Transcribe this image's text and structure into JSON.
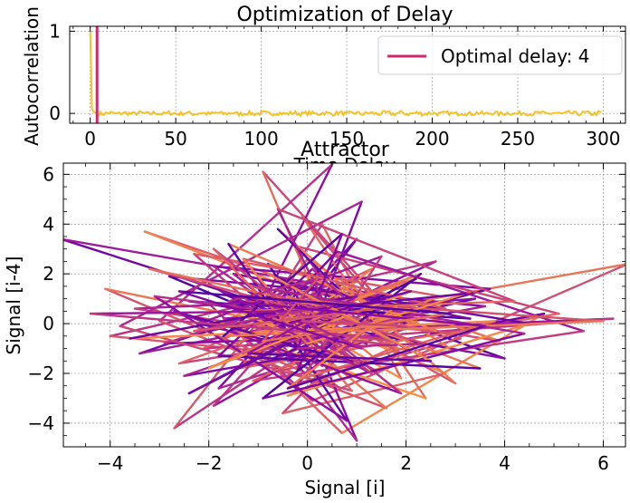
{
  "chart_data": [
    {
      "type": "line",
      "title": "Optimization of Delay",
      "xlabel": "Time Delay",
      "ylabel": "Autocorrelation",
      "xlim": [
        -12,
        313
      ],
      "ylim": [
        -0.12,
        1.06
      ],
      "xticks": [
        0,
        50,
        100,
        150,
        200,
        250,
        300
      ],
      "yticks": [
        0,
        1
      ],
      "grid": true,
      "legend": {
        "position": "top-right",
        "entries": [
          "Optimal delay: 4"
        ]
      },
      "series": [
        {
          "kind": "autocorrelation",
          "color": "#f6c123",
          "x_start": 0,
          "x_end": 299,
          "values_at_lag_0_to_4": [
            1.0,
            0.05,
            0.02,
            0.01,
            0.0
          ],
          "noise_level": 0.025
        }
      ],
      "vline": {
        "x": 4,
        "color": "#cc2a6a",
        "label": "Optimal delay: 4"
      }
    },
    {
      "type": "line",
      "title": "Attractor",
      "xlabel": "Signal [i]",
      "ylabel": "Signal [i-4]",
      "xlim": [
        -4.95,
        6.45
      ],
      "ylim": [
        -4.95,
        6.45
      ],
      "xticks": [
        -4,
        -2,
        0,
        2,
        4,
        6
      ],
      "yticks": [
        -4,
        -2,
        0,
        2,
        4,
        6
      ],
      "grid": true,
      "colormap": "plasma",
      "points": [
        [
          -0.5,
          0.3
        ],
        [
          1.2,
          -0.8
        ],
        [
          -1.6,
          1.1
        ],
        [
          2.3,
          0.2
        ],
        [
          -0.9,
          -1.7
        ],
        [
          0.4,
          2.1
        ],
        [
          -2.2,
          -0.4
        ],
        [
          1.8,
          1.5
        ],
        [
          -0.2,
          -2.4
        ],
        [
          3.1,
          -0.6
        ],
        [
          -3.3,
          3.7
        ],
        [
          0.9,
          0.5
        ],
        [
          -1.1,
          -0.9
        ],
        [
          2.6,
          2.5
        ],
        [
          -4.0,
          -0.5
        ],
        [
          1.5,
          -1.6
        ],
        [
          -0.7,
          1.9
        ],
        [
          4.0,
          -1.4
        ],
        [
          -2.0,
          0.8
        ],
        [
          0.1,
          -3.1
        ],
        [
          6.5,
          2.4
        ],
        [
          -0.3,
          0.0
        ],
        [
          1.0,
          3.4
        ],
        [
          -1.8,
          -2.6
        ],
        [
          2.0,
          -0.2
        ],
        [
          -0.9,
          6.1
        ],
        [
          0.6,
          -0.9
        ],
        [
          -2.8,
          1.9
        ],
        [
          3.6,
          0.7
        ],
        [
          -1.3,
          -1.1
        ],
        [
          0.3,
          4.0
        ],
        [
          1.9,
          -2.2
        ],
        [
          -0.6,
          0.6
        ],
        [
          -5.0,
          3.4
        ],
        [
          2.2,
          0.9
        ],
        [
          -1.5,
          -0.2
        ],
        [
          0.7,
          -4.4
        ],
        [
          4.8,
          0.4
        ],
        [
          -0.4,
          -1.5
        ],
        [
          1.4,
          1.2
        ],
        [
          -2.7,
          -4.2
        ],
        [
          0.0,
          2.6
        ],
        [
          2.9,
          -1.0
        ],
        [
          -1.0,
          0.4
        ],
        [
          0.5,
          6.4
        ],
        [
          -3.0,
          0.1
        ],
        [
          1.6,
          -3.4
        ],
        [
          -0.1,
          -0.6
        ],
        [
          3.7,
          1.4
        ],
        [
          -1.9,
          2.3
        ],
        [
          0.8,
          -1.3
        ],
        [
          -0.8,
          -2.0
        ],
        [
          2.5,
          0.3
        ],
        [
          -2.4,
          0.9
        ],
        [
          1.1,
          -0.1
        ],
        [
          -0.2,
          3.1
        ],
        [
          5.1,
          0.4
        ],
        [
          -1.4,
          -1.8
        ],
        [
          0.9,
          1.7
        ],
        [
          -3.4,
          -1.2
        ],
        [
          1.7,
          0.8
        ],
        [
          -0.5,
          -3.6
        ],
        [
          2.8,
          -2.0
        ],
        [
          -1.2,
          1.3
        ],
        [
          0.2,
          -0.3
        ],
        [
          6.2,
          0.2
        ],
        [
          -2.1,
          -1.0
        ],
        [
          1.3,
          2.2
        ],
        [
          -0.6,
          -0.8
        ],
        [
          3.4,
          1.0
        ],
        [
          -1.7,
          0.2
        ],
        [
          0.6,
          -2.5
        ],
        [
          -4.1,
          1.4
        ],
        [
          2.1,
          -1.1
        ],
        [
          -0.3,
          1.5
        ],
        [
          1.0,
          -4.7
        ],
        [
          -1.2,
          0.9
        ],
        [
          3.9,
          -0.7
        ],
        [
          -0.8,
          2.4
        ],
        [
          0.4,
          -1.1
        ],
        [
          -2.5,
          -2.1
        ],
        [
          1.5,
          0.6
        ],
        [
          -0.1,
          4.3
        ],
        [
          2.4,
          -3.0
        ],
        [
          -1.6,
          -0.3
        ],
        [
          0.7,
          1.0
        ],
        [
          -3.5,
          0.6
        ],
        [
          1.8,
          -0.9
        ],
        [
          -0.4,
          -2.9
        ],
        [
          4.5,
          0.0
        ],
        [
          -1.0,
          1.8
        ],
        [
          0.3,
          -1.7
        ],
        [
          -2.3,
          2.8
        ],
        [
          2.7,
          1.1
        ],
        [
          -0.7,
          -1.4
        ],
        [
          1.2,
          0.1
        ],
        [
          -1.9,
          -3.3
        ],
        [
          0.0,
          0.9
        ],
        [
          3.0,
          -2.4
        ],
        [
          -0.6,
          3.8
        ],
        [
          1.6,
          -0.5
        ],
        [
          -2.9,
          -0.8
        ],
        [
          0.5,
          1.4
        ],
        [
          -1.3,
          -0.6
        ],
        [
          2.3,
          2.0
        ],
        [
          -0.2,
          -1.9
        ],
        [
          1.1,
          4.9
        ],
        [
          -3.8,
          -0.1
        ],
        [
          0.9,
          -2.7
        ],
        [
          -0.5,
          0.7
        ],
        [
          3.3,
          0.2
        ],
        [
          -1.5,
          2.0
        ],
        [
          0.2,
          -0.7
        ],
        [
          -2.6,
          -1.6
        ],
        [
          1.9,
          1.6
        ],
        [
          -0.9,
          -0.2
        ],
        [
          0.6,
          2.9
        ],
        [
          5.6,
          -0.3
        ],
        [
          -1.1,
          -2.3
        ],
        [
          2.0,
          0.5
        ],
        [
          -0.3,
          -0.4
        ],
        [
          -2.0,
          1.6
        ],
        [
          1.4,
          -1.9
        ],
        [
          -0.7,
          0.2
        ],
        [
          2.6,
          -0.3
        ],
        [
          -1.6,
          3.2
        ],
        [
          0.8,
          -3.9
        ],
        [
          -3.1,
          1.1
        ],
        [
          1.3,
          0.0
        ],
        [
          -0.4,
          1.1
        ],
        [
          3.5,
          -1.8
        ],
        [
          -1.8,
          -1.3
        ],
        [
          0.1,
          2.2
        ],
        [
          1.7,
          -0.7
        ],
        [
          -1.0,
          -0.1
        ],
        [
          2.2,
          1.8
        ],
        [
          -2.4,
          -2.8
        ],
        [
          0.5,
          0.2
        ],
        [
          -0.6,
          4.6
        ],
        [
          4.2,
          0.9
        ],
        [
          -1.4,
          0.5
        ],
        [
          0.9,
          -1.5
        ],
        [
          -2.2,
          0.0
        ],
        [
          1.5,
          2.7
        ],
        [
          -0.1,
          -2.2
        ],
        [
          3.8,
          0.1
        ],
        [
          -3.6,
          -0.6
        ],
        [
          1.0,
          1.1
        ],
        [
          -0.8,
          -0.9
        ],
        [
          2.8,
          0.6
        ],
        [
          -1.3,
          2.6
        ],
        [
          0.3,
          -1.2
        ],
        [
          -2.7,
          0.5
        ],
        [
          1.9,
          -2.8
        ],
        [
          -0.5,
          1.0
        ],
        [
          6.0,
          0.1
        ],
        [
          -1.7,
          -0.5
        ],
        [
          0.7,
          3.6
        ],
        [
          -0.2,
          -1.0
        ],
        [
          2.4,
          -0.8
        ],
        [
          -3.2,
          2.2
        ],
        [
          1.2,
          0.3
        ],
        [
          -0.9,
          -3.0
        ],
        [
          4.4,
          -0.4
        ],
        [
          -1.1,
          1.5
        ],
        [
          0.4,
          0.4
        ],
        [
          -2.0,
          -1.8
        ],
        [
          2.1,
          1.3
        ],
        [
          -0.6,
          -0.1
        ],
        [
          1.3,
          -2.0
        ],
        [
          -1.9,
          3.0
        ],
        [
          0.0,
          -0.8
        ],
        [
          3.2,
          1.2
        ],
        [
          -0.3,
          0.5
        ],
        [
          -4.4,
          0.4
        ],
        [
          1.6,
          -0.6
        ],
        [
          -0.8,
          2.0
        ],
        [
          2.5,
          -1.5
        ],
        [
          -1.2,
          -1.2
        ],
        [
          0.6,
          0.8
        ],
        [
          -2.3,
          -0.3
        ],
        [
          1.8,
          0.7
        ],
        [
          -0.4,
          -2.6
        ],
        [
          3.6,
          -0.1
        ],
        [
          -1.6,
          0.9
        ],
        [
          0.2,
          1.8
        ],
        [
          -0.9,
          -0.7
        ],
        [
          2.9,
          0.4
        ],
        [
          -2.6,
          1.3
        ],
        [
          1.1,
          -1.0
        ],
        [
          -0.1,
          0.1
        ],
        [
          2.0,
          -0.1
        ]
      ]
    }
  ]
}
